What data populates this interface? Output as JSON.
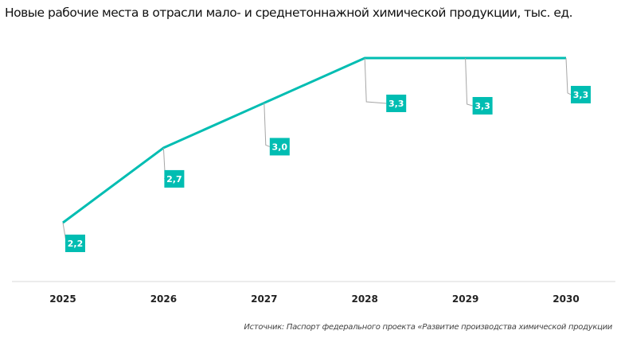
{
  "title": "Новые рабочие места в отрасли мало- и среднетоннажной  химической продукции, тыс. ед.",
  "source": "Источник: Паспорт федерального проекта «Развитие производства химической продукции",
  "chart_data": {
    "type": "line",
    "title": "Новые рабочие места в отрасли мало- и среднетоннажной  химической продукции, тыс. ед.",
    "categories": [
      "2025",
      "2026",
      "2027",
      "2028",
      "2029",
      "2030"
    ],
    "series": [
      {
        "values": [
          2.2,
          2.7,
          3.0,
          3.3,
          3.3,
          3.3
        ]
      }
    ],
    "data_labels": [
      "2,2",
      "2,7",
      "3,0",
      "3,3",
      "3,3",
      "3,3"
    ],
    "xlabel": "",
    "ylabel": "",
    "grid": false,
    "legend": "none",
    "colors": {
      "line": "#00BDB2",
      "label_bg": "#00BDB2",
      "leader": "#A6A6A6",
      "axis": "#D9D9D9"
    }
  }
}
